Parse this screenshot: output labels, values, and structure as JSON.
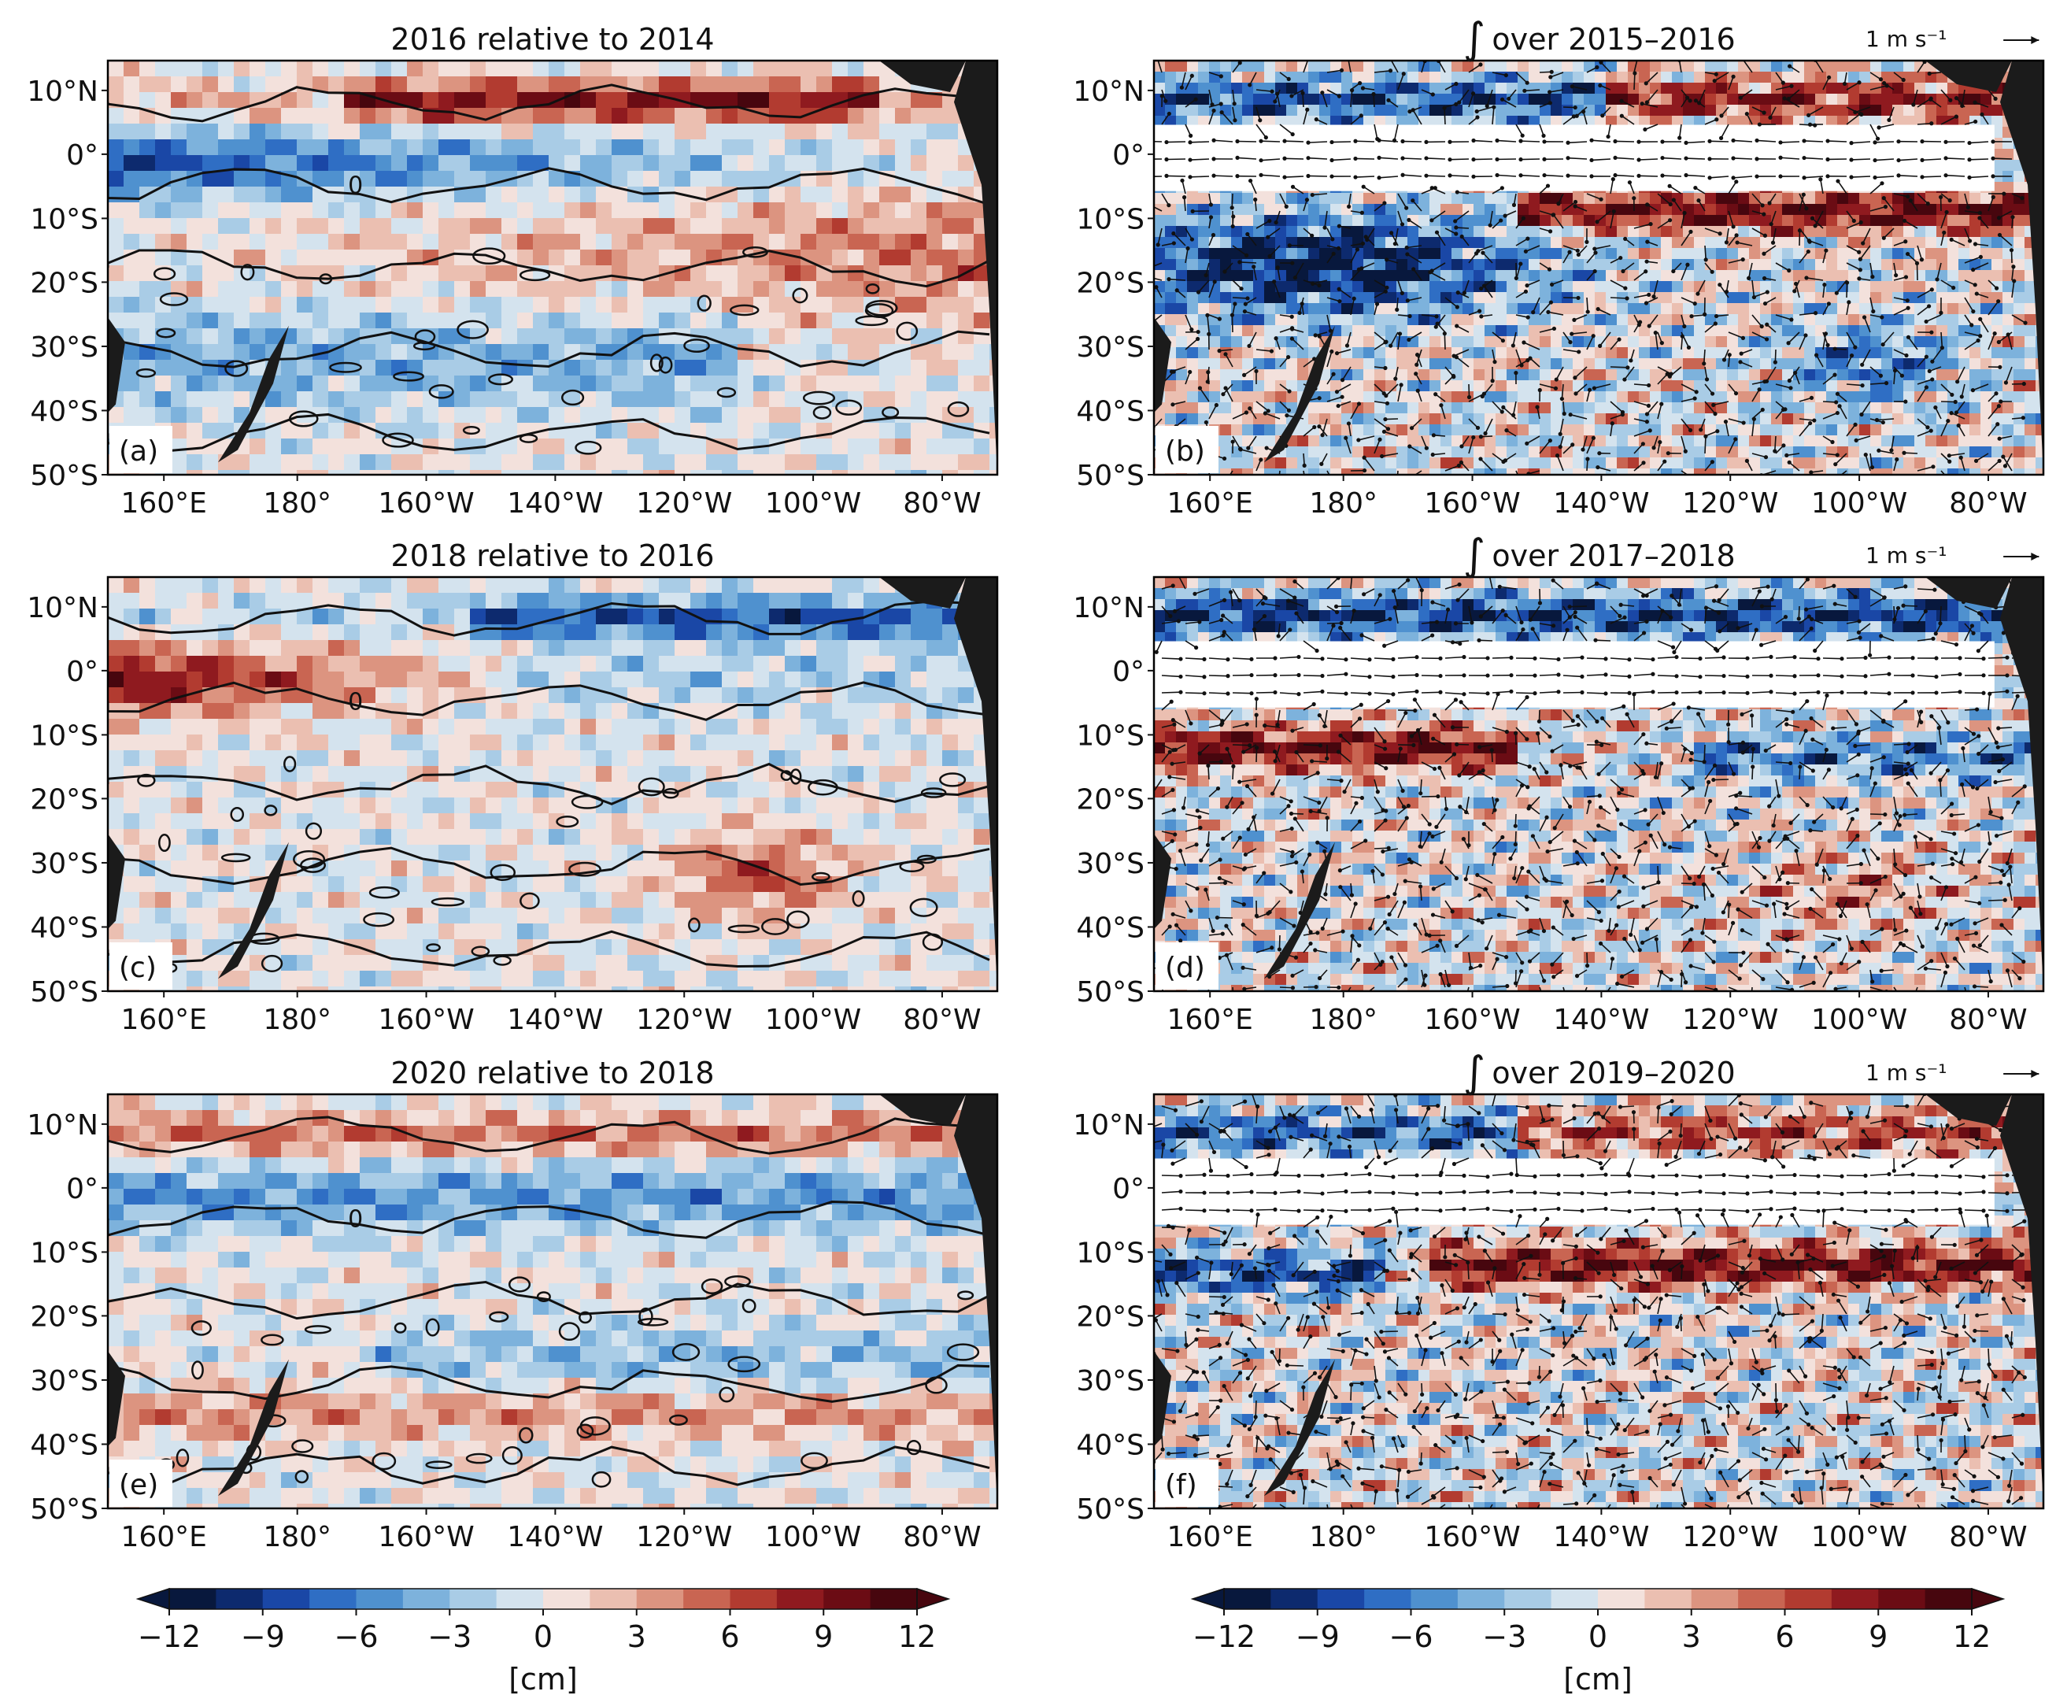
{
  "figure": {
    "panels": [
      {
        "id": "a",
        "label": "(a)",
        "title": "2016 relative to 2014",
        "arrow_key": "",
        "kind": "ssh"
      },
      {
        "id": "b",
        "label": "(b)",
        "title": "over 2015–2016",
        "arrow_key": "1 m s⁻¹",
        "kind": "integral"
      },
      {
        "id": "c",
        "label": "(c)",
        "title": "2018 relative to 2016",
        "arrow_key": "",
        "kind": "ssh"
      },
      {
        "id": "d",
        "label": "(d)",
        "title": "over 2017–2018",
        "arrow_key": "1 m s⁻¹",
        "kind": "integral"
      },
      {
        "id": "e",
        "label": "(e)",
        "title": "2020 relative to 2018",
        "arrow_key": "",
        "kind": "ssh"
      },
      {
        "id": "f",
        "label": "(f)",
        "title": "over 2019–2020",
        "arrow_key": "1 m s⁻¹",
        "kind": "integral"
      }
    ],
    "integral_symbol": "∫",
    "contour_label": "0",
    "lat_ticks": [
      "10°N",
      "0°",
      "10°S",
      "20°S",
      "30°S",
      "40°S",
      "50°S"
    ],
    "lon_ticks": [
      "160°E",
      "180°",
      "160°W",
      "140°W",
      "120°W",
      "100°W",
      "80°W"
    ],
    "colorbars": [
      {
        "id": "left",
        "ticks": [
          "−12",
          "−9",
          "−6",
          "−3",
          "0",
          "3",
          "6",
          "9",
          "12"
        ],
        "unit": "[cm]"
      },
      {
        "id": "right",
        "ticks": [
          "−12",
          "−9",
          "−6",
          "−3",
          "0",
          "3",
          "6",
          "9",
          "12"
        ],
        "unit": "[cm]"
      }
    ],
    "colormap": [
      "#08183d",
      "#0d2a6e",
      "#1a47a6",
      "#2f6ec4",
      "#4f91cf",
      "#7db2dc",
      "#a9cce6",
      "#d4e3ee",
      "#f3e1dc",
      "#ebbfb1",
      "#dc9480",
      "#c96552",
      "#b23b30",
      "#8f1a1f",
      "#6b0c14",
      "#47060e"
    ],
    "land_color": "#1b1b1b"
  }
}
